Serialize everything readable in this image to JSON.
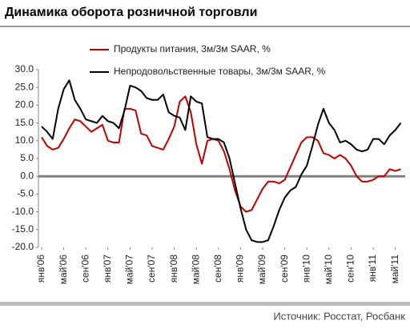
{
  "chart_data": {
    "type": "line",
    "title": "Динамика оборота розничной торговли",
    "source": "Источник: Росстат, Росбанк",
    "categories": [
      "янв'06",
      null,
      null,
      null,
      "май'06",
      null,
      null,
      null,
      "сен'06",
      null,
      null,
      null,
      "янв'07",
      null,
      null,
      null,
      "май'07",
      null,
      null,
      null,
      "сен'07",
      null,
      null,
      null,
      "янв'08",
      null,
      null,
      null,
      "май'08",
      null,
      null,
      null,
      "сен'08",
      null,
      null,
      null,
      "янв'09",
      null,
      null,
      null,
      "май'09",
      null,
      null,
      null,
      "сен'09",
      null,
      null,
      null,
      "янв'10",
      null,
      null,
      null,
      "май'10",
      null,
      null,
      null,
      "сен'10",
      null,
      null,
      null,
      "янв'11",
      null,
      null,
      null,
      "май'11",
      null
    ],
    "series": [
      {
        "name": "Продукты питания, 3м/3м SAAR, %",
        "color": "#c00000",
        "values": [
          11,
          8.5,
          7.5,
          8,
          10.5,
          13.5,
          16,
          15.5,
          14,
          12.5,
          13.5,
          14.5,
          10,
          9.5,
          9.5,
          19,
          19,
          18.5,
          12,
          11.5,
          8.5,
          8,
          7.5,
          10.5,
          14,
          21,
          22.5,
          18,
          9,
          3.5,
          10,
          10.5,
          10,
          7,
          2,
          -4,
          -8.5,
          -10,
          -9.5,
          -6.5,
          -3.5,
          -1.5,
          -1.5,
          -2,
          -1,
          2.5,
          6,
          9.5,
          11,
          11,
          10,
          6.5,
          6,
          5,
          6,
          5,
          3,
          0,
          -1.5,
          -1.5,
          -1,
          0,
          0,
          2,
          1.5,
          2
        ]
      },
      {
        "name": "Непродовольственные товары, 3м/3м SAAR, %",
        "color": "#000000",
        "values": [
          14,
          12.5,
          10.5,
          19,
          24.5,
          27,
          21.5,
          19,
          16,
          15.5,
          15,
          17,
          15.5,
          15,
          13.5,
          18.5,
          25.5,
          25,
          24,
          22,
          21.5,
          21.5,
          23,
          18,
          17,
          16.5,
          13,
          22.5,
          21,
          20.5,
          11,
          10.5,
          10.5,
          9.5,
          5,
          -2,
          -9,
          -15,
          -18,
          -18.5,
          -18.5,
          -18,
          -14,
          -9.5,
          -6,
          -4,
          -3,
          0.5,
          3,
          8.5,
          14.5,
          19,
          15,
          13,
          9.5,
          10,
          9,
          7.5,
          7,
          7.5,
          10.5,
          10.5,
          9,
          11.5,
          13,
          15
        ]
      }
    ],
    "ylim": [
      -20,
      30
    ],
    "yticks": [
      {
        "value": -20,
        "label": "-20.0"
      },
      {
        "value": -15,
        "label": "-15.0"
      },
      {
        "value": -10,
        "label": "-10.0"
      },
      {
        "value": -5,
        "label": "-5.0"
      },
      {
        "value": 0,
        "label": "0.0"
      },
      {
        "value": 5,
        "label": "5.0"
      },
      {
        "value": 10,
        "label": "10.0"
      },
      {
        "value": 15,
        "label": "15.0"
      },
      {
        "value": 20,
        "label": "20.0"
      },
      {
        "value": 25,
        "label": "25.0"
      },
      {
        "value": 30,
        "label": "30.0"
      }
    ],
    "grid": false,
    "legend": "top"
  }
}
